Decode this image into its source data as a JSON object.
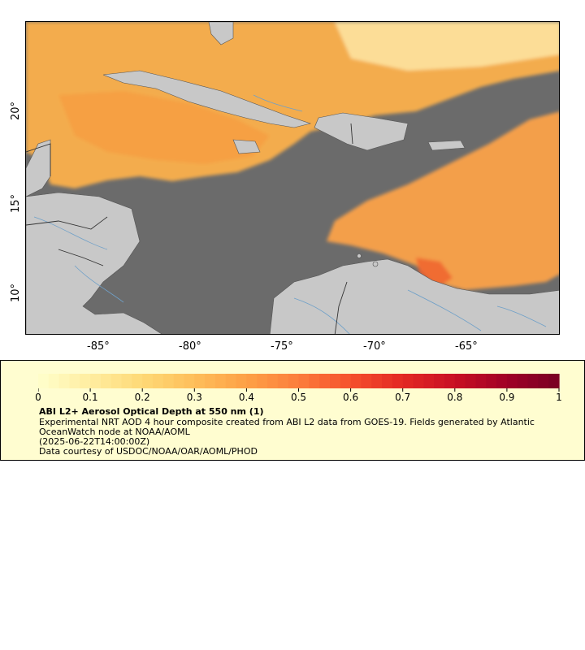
{
  "map": {
    "lon_ticks": [
      "-85°",
      "-80°",
      "-75°",
      "-70°",
      "-65°"
    ],
    "lat_ticks": [
      "20°",
      "15°",
      "10°"
    ],
    "colors": {
      "ocean_nodata": "#6b6b6b",
      "land": "#c8c8c8",
      "border": "#444444",
      "river": "#6fa0c8"
    }
  },
  "legend": {
    "colorbar_ticks": [
      "0",
      "0.1",
      "0.2",
      "0.3",
      "0.4",
      "0.5",
      "0.6",
      "0.7",
      "0.8",
      "0.9",
      "1"
    ],
    "colormap": "YlOrRd",
    "title": "ABI L2+ Aerosol Optical Depth at 550 nm (1)",
    "line1": "Experimental NRT AOD 4 hour composite created from ABI L2 data from GOES-19. Fields generated by Atlantic",
    "line2": "OceanWatch node at NOAA/AOML",
    "line3": "(2025-06-22T14:00:00Z)",
    "line4": "Data courtesy of USDOC/NOAA/OAR/AOML/PHOD",
    "background": "#fffdd0"
  }
}
